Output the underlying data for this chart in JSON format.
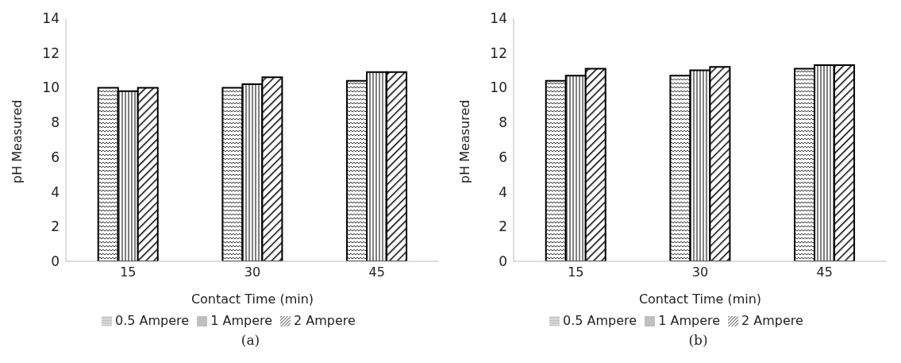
{
  "chart_data": [
    {
      "type": "bar",
      "xlabel": "Contact Time (min)",
      "ylabel": "pH  Measured",
      "categories": [
        "15",
        "30",
        "45"
      ],
      "series": [
        {
          "name": "0.5 Ampere",
          "color": "#000000",
          "values": [
            10.0,
            10.0,
            10.4
          ]
        },
        {
          "name": "1 Ampere",
          "color": "#000000",
          "values": [
            9.8,
            10.2,
            10.9
          ]
        },
        {
          "name": "2 Ampere",
          "color": "#000000",
          "values": [
            10.0,
            10.6,
            10.9
          ]
        }
      ],
      "ylim": [
        0,
        14
      ],
      "yticks": [
        0,
        2,
        4,
        6,
        8,
        10,
        12,
        14
      ],
      "grid": false,
      "legend": "bottom",
      "annotations": [
        "(a)"
      ]
    },
    {
      "type": "bar",
      "xlabel": "Contact Time (min)",
      "ylabel": "pH  Measured",
      "categories": [
        "15",
        "30",
        "45"
      ],
      "series": [
        {
          "name": "0.5 Ampere",
          "color": "#000000",
          "values": [
            10.4,
            10.7,
            11.1
          ]
        },
        {
          "name": "1 Ampere",
          "color": "#000000",
          "values": [
            10.7,
            11.0,
            11.3
          ]
        },
        {
          "name": "2 Ampere",
          "color": "#000000",
          "values": [
            11.1,
            11.2,
            11.3
          ]
        }
      ],
      "ylim": [
        0,
        14
      ],
      "yticks": [
        0,
        2,
        4,
        6,
        8,
        10,
        12,
        14
      ],
      "grid": false,
      "legend": "bottom",
      "annotations": [
        "(b)"
      ]
    }
  ]
}
